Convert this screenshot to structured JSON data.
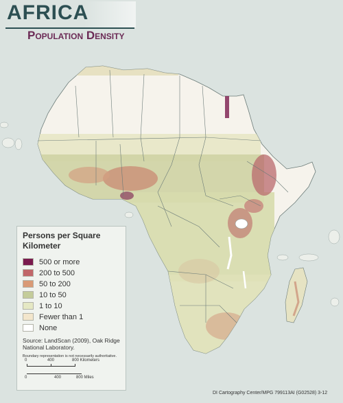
{
  "title": "AFRICA",
  "subtitle": "Population Density",
  "legend": {
    "title": "Persons per Square Kilometer",
    "items": [
      {
        "label": "500 or more",
        "color": "#7a1a4e"
      },
      {
        "label": "200 to 500",
        "color": "#c1676a"
      },
      {
        "label": "50 to 200",
        "color": "#d99a76"
      },
      {
        "label": "10 to 50",
        "color": "#c4cc9a"
      },
      {
        "label": "1 to 10",
        "color": "#e5e8c4"
      },
      {
        "label": "Fewer than 1",
        "color": "#f3e6cc"
      },
      {
        "label": "None",
        "color": "#ffffff"
      }
    ]
  },
  "source": "Source: LandScan (2009), Oak Ridge National Laboratory.",
  "disclaimer": "Boundary representation is not necessarily authoritative.",
  "scale": {
    "km_ticks": [
      "0",
      "400",
      "800 Kilometers"
    ],
    "mi_ticks": [
      "0",
      "400",
      "800 Miles"
    ]
  },
  "credit": "DI Cartography Center/MPG 799113AI (G02528) 3-12"
}
